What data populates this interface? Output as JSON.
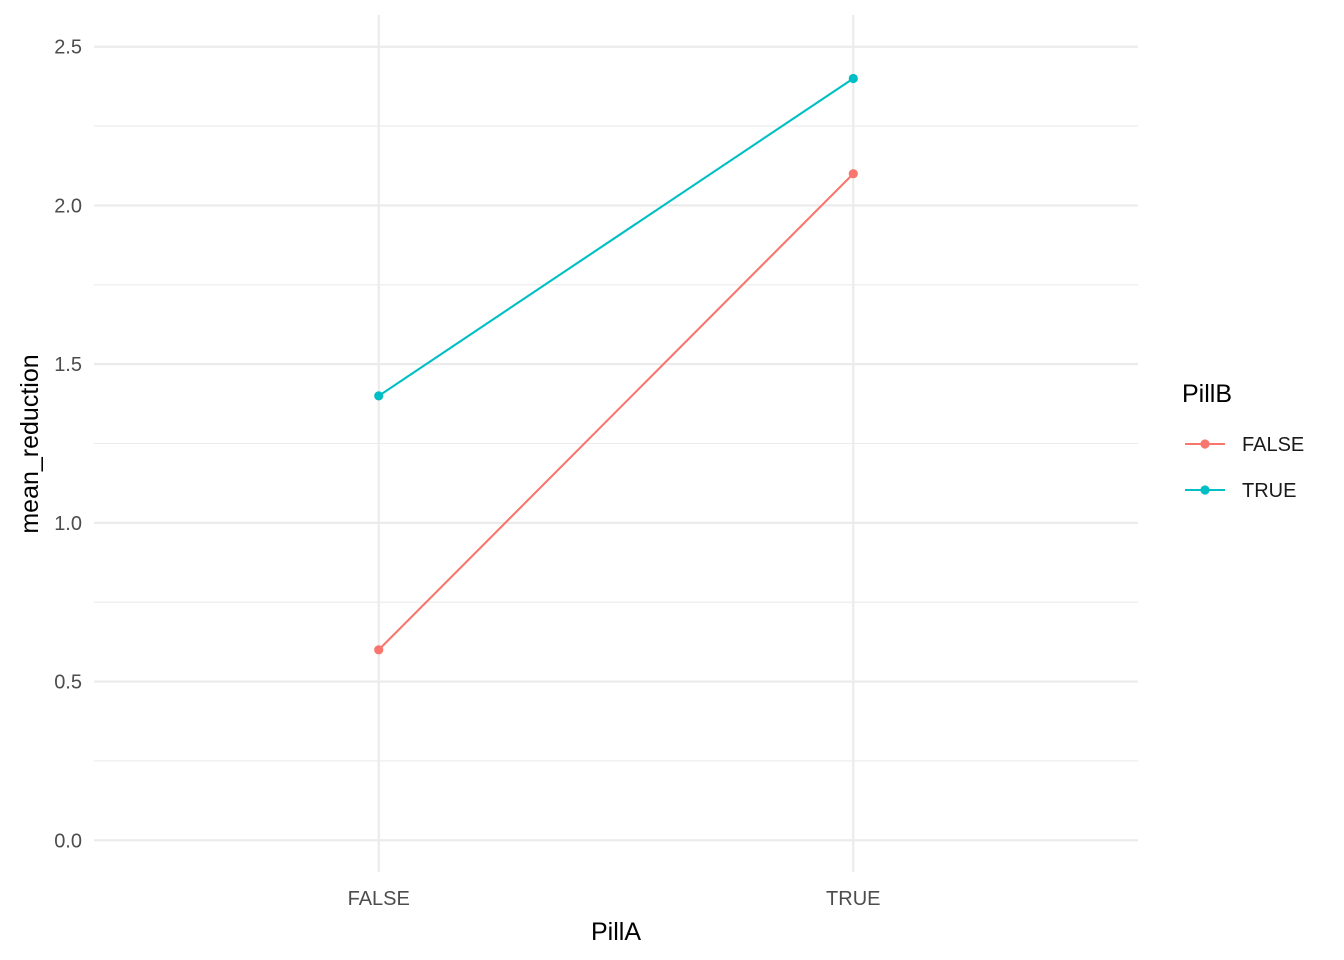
{
  "chart_data": {
    "type": "line",
    "title": "",
    "xlabel": "PillA",
    "ylabel": "mean_reduction",
    "categories": [
      "FALSE",
      "TRUE"
    ],
    "ylim": [
      -0.1,
      2.6
    ],
    "y_ticks": [
      "0.0",
      "0.5",
      "1.0",
      "1.5",
      "2.0",
      "2.5"
    ],
    "y_tick_values": [
      0.0,
      0.5,
      1.0,
      1.5,
      2.0,
      2.5
    ],
    "grid": true,
    "legend": {
      "title": "PillB",
      "position": "right"
    },
    "series": [
      {
        "name": "FALSE",
        "values": [
          0.6,
          2.1
        ],
        "color": "#F8766D"
      },
      {
        "name": "TRUE",
        "values": [
          1.4,
          2.4
        ],
        "color": "#00BFC4"
      }
    ]
  }
}
